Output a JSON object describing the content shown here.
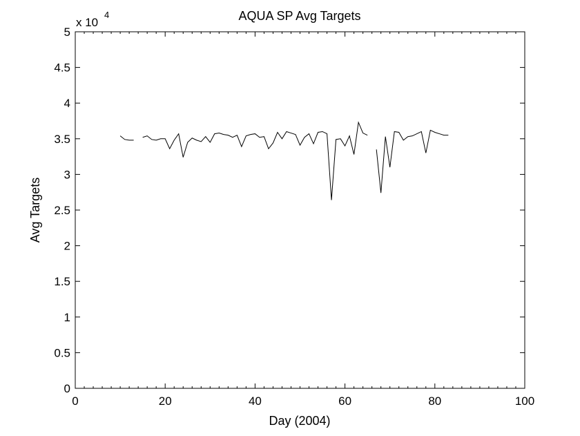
{
  "chart_data": {
    "type": "line",
    "title": "AQUA SP Avg Targets",
    "xlabel": "Day (2004)",
    "ylabel": "Avg Targets",
    "exponent_label": "x 10",
    "exponent_power": "4",
    "xlim": [
      0,
      100
    ],
    "ylim": [
      0,
      5
    ],
    "xticks": [
      0,
      20,
      40,
      60,
      80,
      100
    ],
    "yticks": [
      0,
      0.5,
      1,
      1.5,
      2,
      2.5,
      3,
      3.5,
      4,
      4.5,
      5
    ],
    "xtick_labels": [
      "0",
      "20",
      "40",
      "60",
      "80",
      "100"
    ],
    "ytick_labels": [
      "0",
      "0.5",
      "1",
      "1.5",
      "2",
      "2.5",
      "3",
      "3.5",
      "4",
      "4.5",
      "5"
    ],
    "grid": false,
    "color": "#000000",
    "series": [
      {
        "segments": [
          {
            "x": [
              10,
              11,
              12,
              13
            ],
            "y": [
              3.54,
              3.49,
              3.48,
              3.48
            ]
          },
          {
            "x": [
              15,
              16,
              17,
              18,
              19,
              20,
              21,
              22,
              23,
              24,
              25,
              26,
              27,
              28,
              29,
              30,
              31,
              32,
              33,
              34,
              35,
              36,
              37,
              38,
              39,
              40,
              41,
              42,
              43,
              44,
              45,
              46,
              47,
              48,
              49,
              50,
              51,
              52,
              53,
              54,
              55,
              56,
              57,
              58,
              59,
              60,
              61,
              62,
              63,
              64,
              65
            ],
            "y": [
              3.52,
              3.54,
              3.49,
              3.48,
              3.5,
              3.5,
              3.36,
              3.48,
              3.57,
              3.24,
              3.45,
              3.51,
              3.48,
              3.46,
              3.53,
              3.45,
              3.57,
              3.58,
              3.56,
              3.55,
              3.52,
              3.55,
              3.39,
              3.54,
              3.56,
              3.57,
              3.52,
              3.53,
              3.36,
              3.44,
              3.59,
              3.5,
              3.6,
              3.58,
              3.56,
              3.41,
              3.52,
              3.57,
              3.43,
              3.59,
              3.6,
              3.57,
              2.64,
              3.49,
              3.5,
              3.4,
              3.54,
              3.28,
              3.73,
              3.58,
              3.55
            ]
          },
          {
            "x": [
              67,
              68,
              69,
              70,
              71,
              72,
              73,
              74,
              75,
              76,
              77,
              78,
              79,
              80,
              81,
              82,
              83
            ],
            "y": [
              3.35,
              2.74,
              3.53,
              3.1,
              3.6,
              3.59,
              3.48,
              3.53,
              3.54,
              3.57,
              3.6,
              3.3,
              3.62,
              3.59,
              3.57,
              3.55,
              3.55
            ]
          }
        ]
      }
    ]
  }
}
